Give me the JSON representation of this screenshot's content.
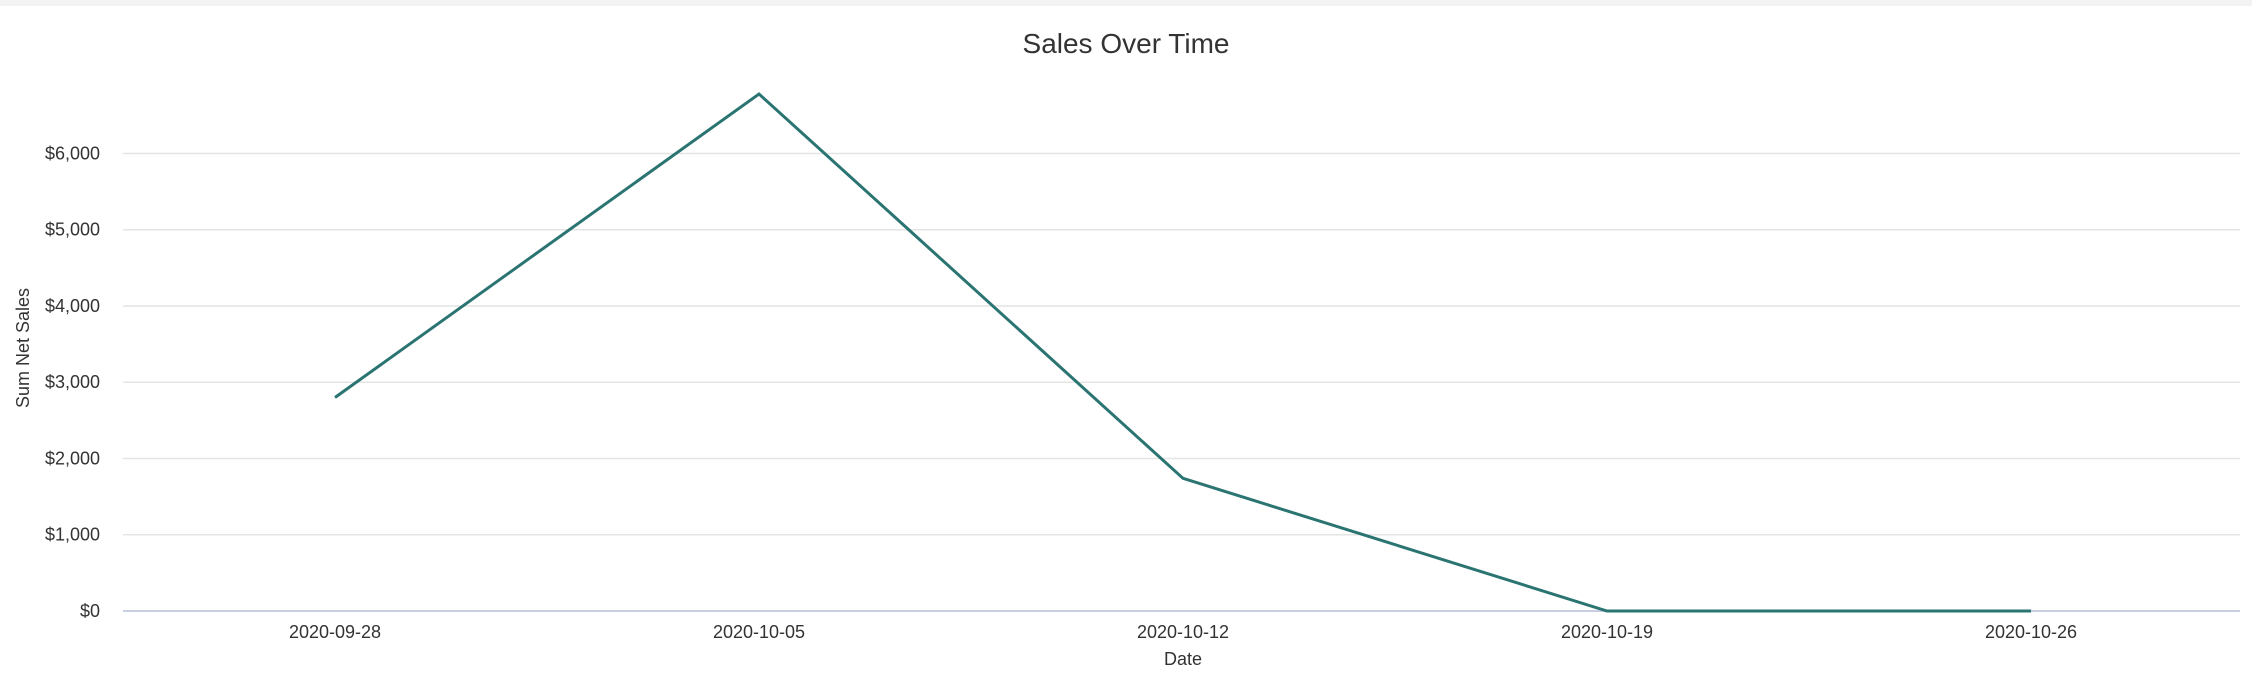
{
  "chart_data": {
    "type": "line",
    "title": "Sales Over Time",
    "xlabel": "Date",
    "ylabel": "Sum Net Sales",
    "categories": [
      "2020-09-28",
      "2020-10-05",
      "2020-10-12",
      "2020-10-19",
      "2020-10-26"
    ],
    "series": [
      {
        "values": [
          2800,
          6780,
          1740,
          0,
          0
        ],
        "color": "#2a7472"
      }
    ],
    "yticks": [
      0,
      1000,
      2000,
      3000,
      4000,
      5000,
      6000
    ],
    "ytick_labels": [
      "$0",
      "$1,000",
      "$2,000",
      "$3,000",
      "$4,000",
      "$5,000",
      "$6,000"
    ],
    "ylim": [
      0,
      6780
    ],
    "grid": true,
    "legend": "none"
  }
}
